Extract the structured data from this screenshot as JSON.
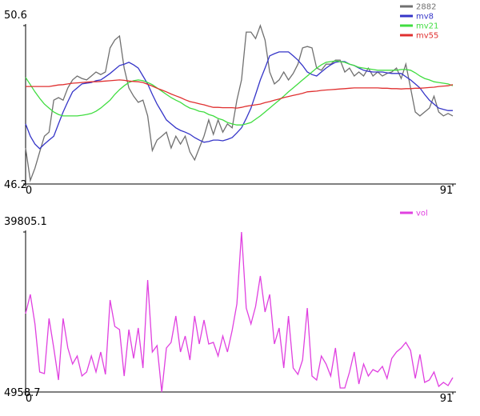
{
  "chart_data": [
    {
      "type": "line",
      "x": [
        0,
        1,
        2,
        3,
        4,
        5,
        6,
        7,
        8,
        9,
        10,
        11,
        12,
        13,
        14,
        15,
        16,
        17,
        18,
        19,
        20,
        21,
        22,
        23,
        24,
        25,
        26,
        27,
        28,
        29,
        30,
        31,
        32,
        33,
        34,
        35,
        36,
        37,
        38,
        39,
        40,
        41,
        42,
        43,
        44,
        45,
        46,
        47,
        48,
        49,
        50,
        51,
        52,
        53,
        54,
        55,
        56,
        57,
        58,
        59,
        60,
        61,
        62,
        63,
        64,
        65,
        66,
        67,
        68,
        69,
        70,
        71,
        72,
        73,
        74,
        75,
        76,
        77,
        78,
        79,
        80,
        81,
        82,
        83,
        84,
        85,
        86,
        87,
        88,
        89,
        90,
        91
      ],
      "xlim": [
        0,
        91
      ],
      "xticks": [
        0,
        91
      ],
      "ylim": [
        46.2,
        50.6
      ],
      "yticks": [
        46.2,
        50.6
      ],
      "legend": "upper right",
      "series": [
        {
          "name": "2882",
          "color": "#707070",
          "values": [
            47.2,
            46.3,
            46.64,
            47.09,
            47.53,
            47.64,
            48.53,
            48.6,
            48.53,
            48.87,
            49.09,
            49.2,
            49.13,
            49.09,
            49.2,
            49.31,
            49.24,
            49.31,
            49.98,
            50.2,
            50.31,
            49.42,
            48.87,
            48.64,
            48.47,
            48.53,
            48.09,
            47.13,
            47.42,
            47.53,
            47.64,
            47.2,
            47.53,
            47.31,
            47.53,
            47.09,
            46.87,
            47.2,
            47.53,
            47.98,
            47.58,
            47.98,
            47.64,
            47.87,
            47.76,
            48.53,
            49.09,
            50.42,
            50.42,
            50.24,
            50.6,
            50.2,
            49.31,
            48.98,
            49.09,
            49.31,
            49.09,
            49.27,
            49.53,
            49.98,
            50.02,
            49.98,
            49.42,
            49.36,
            49.53,
            49.53,
            49.64,
            49.64,
            49.31,
            49.42,
            49.2,
            49.31,
            49.2,
            49.42,
            49.2,
            49.31,
            49.2,
            49.27,
            49.31,
            49.42,
            49.13,
            49.53,
            48.87,
            48.2,
            48.09,
            48.2,
            48.31,
            48.64,
            48.2,
            48.09,
            48.16,
            48.09
          ]
        },
        {
          "name": "mv8",
          "color": "#3535c8",
          "values": [
            47.87,
            47.53,
            47.31,
            47.18,
            47.31,
            47.42,
            47.53,
            47.87,
            48.2,
            48.49,
            48.76,
            48.87,
            48.98,
            49.0,
            49.02,
            49.07,
            49.09,
            49.18,
            49.27,
            49.38,
            49.49,
            49.53,
            49.58,
            49.51,
            49.42,
            49.2,
            48.98,
            48.69,
            48.42,
            48.2,
            47.98,
            47.87,
            47.76,
            47.69,
            47.64,
            47.58,
            47.49,
            47.42,
            47.36,
            47.38,
            47.42,
            47.42,
            47.4,
            47.44,
            47.49,
            47.62,
            47.76,
            48.02,
            48.31,
            48.69,
            49.09,
            49.42,
            49.76,
            49.82,
            49.87,
            49.87,
            49.87,
            49.76,
            49.64,
            49.49,
            49.31,
            49.24,
            49.2,
            49.31,
            49.42,
            49.51,
            49.58,
            49.6,
            49.6,
            49.53,
            49.49,
            49.42,
            49.36,
            49.33,
            49.31,
            49.31,
            49.31,
            49.29,
            49.27,
            49.27,
            49.27,
            49.18,
            49.09,
            48.98,
            48.87,
            48.69,
            48.53,
            48.42,
            48.31,
            48.27,
            48.24,
            48.24
          ]
        },
        {
          "name": "mv21",
          "color": "#40dd40",
          "values": [
            49.16,
            48.96,
            48.76,
            48.58,
            48.42,
            48.31,
            48.2,
            48.13,
            48.09,
            48.09,
            48.09,
            48.09,
            48.11,
            48.13,
            48.16,
            48.22,
            48.31,
            48.42,
            48.53,
            48.69,
            48.82,
            48.93,
            49.02,
            49.07,
            49.09,
            49.07,
            49.02,
            48.96,
            48.87,
            48.78,
            48.69,
            48.6,
            48.53,
            48.47,
            48.38,
            48.31,
            48.27,
            48.22,
            48.2,
            48.13,
            48.09,
            48.02,
            47.98,
            47.91,
            47.87,
            47.84,
            47.84,
            47.87,
            47.91,
            48.0,
            48.09,
            48.2,
            48.31,
            48.42,
            48.53,
            48.64,
            48.76,
            48.87,
            48.98,
            49.09,
            49.2,
            49.31,
            49.42,
            49.51,
            49.58,
            49.6,
            49.62,
            49.6,
            49.58,
            49.53,
            49.49,
            49.44,
            49.42,
            49.4,
            49.38,
            49.36,
            49.36,
            49.36,
            49.36,
            49.36,
            49.38,
            49.38,
            49.36,
            49.29,
            49.2,
            49.13,
            49.09,
            49.04,
            49.02,
            49.0,
            48.98,
            48.93
          ]
        },
        {
          "name": "mv55",
          "color": "#e03030",
          "values": [
            48.91,
            48.91,
            48.91,
            48.91,
            48.91,
            48.91,
            48.93,
            48.95,
            48.96,
            48.98,
            49.0,
            49.01,
            49.02,
            49.03,
            49.04,
            49.04,
            49.05,
            49.06,
            49.07,
            49.08,
            49.09,
            49.08,
            49.06,
            49.05,
            49.04,
            49.02,
            48.97,
            48.92,
            48.86,
            48.81,
            48.76,
            48.7,
            48.65,
            48.6,
            48.54,
            48.49,
            48.46,
            48.43,
            48.4,
            48.36,
            48.33,
            48.33,
            48.32,
            48.32,
            48.32,
            48.31,
            48.33,
            48.36,
            48.38,
            48.4,
            48.42,
            48.46,
            48.49,
            48.53,
            48.56,
            48.6,
            48.63,
            48.66,
            48.69,
            48.72,
            48.76,
            48.77,
            48.78,
            48.8,
            48.81,
            48.82,
            48.83,
            48.84,
            48.85,
            48.86,
            48.87,
            48.87,
            48.87,
            48.87,
            48.87,
            48.87,
            48.86,
            48.86,
            48.85,
            48.85,
            48.84,
            48.85,
            48.85,
            48.86,
            48.86,
            48.87,
            48.88,
            48.89,
            48.91,
            48.92,
            48.93,
            48.96
          ]
        }
      ]
    },
    {
      "type": "line",
      "x": [
        0,
        1,
        2,
        3,
        4,
        5,
        6,
        7,
        8,
        9,
        10,
        11,
        12,
        13,
        14,
        15,
        16,
        17,
        18,
        19,
        20,
        21,
        22,
        23,
        24,
        25,
        26,
        27,
        28,
        29,
        30,
        31,
        32,
        33,
        34,
        35,
        36,
        37,
        38,
        39,
        40,
        41,
        42,
        43,
        44,
        45,
        46,
        47,
        48,
        49,
        50,
        51,
        52,
        53,
        54,
        55,
        56,
        57,
        58,
        59,
        60,
        61,
        62,
        63,
        64,
        65,
        66,
        67,
        68,
        69,
        70,
        71,
        72,
        73,
        74,
        75,
        76,
        77,
        78,
        79,
        80,
        81,
        82,
        83,
        84,
        85,
        86,
        87,
        88,
        89,
        90,
        91
      ],
      "xlim": [
        0,
        91
      ],
      "xticks": [
        0,
        91
      ],
      "ylim": [
        4958.7,
        39805.1
      ],
      "yticks": [
        4958.7,
        39805.1
      ],
      "legend": "upper right",
      "series": [
        {
          "name": "vol",
          "color": "#e040e0",
          "values": [
            22031,
            26211,
            19766,
            9314,
            8966,
            20985,
            14540,
            7572,
            20985,
            14540,
            11056,
            12798,
            8443,
            9314,
            12798,
            9314,
            13669,
            8791,
            24992,
            19243,
            18547,
            8443,
            18547,
            12275,
            18895,
            10185,
            29347,
            13669,
            15063,
            4958.7,
            14540,
            15759,
            21508,
            13669,
            17153,
            11927,
            21508,
            15411,
            20637,
            15411,
            15759,
            12798,
            17153,
            13669,
            18372,
            24121,
            39805.1,
            23250,
            19766,
            23598,
            30218,
            22379,
            26211,
            15411,
            18895,
            10185,
            21508,
            10185,
            8791,
            11927,
            23250,
            8443,
            7572,
            12798,
            11056,
            8443,
            14540,
            5830,
            5830,
            9314,
            13669,
            6701,
            11056,
            8443,
            9836,
            9314,
            10533,
            7920,
            12275,
            13669,
            14540,
            15759,
            14017,
            7920,
            13146,
            7049,
            7572,
            9314,
            6178,
            7049,
            6353,
            8095
          ]
        }
      ]
    }
  ]
}
